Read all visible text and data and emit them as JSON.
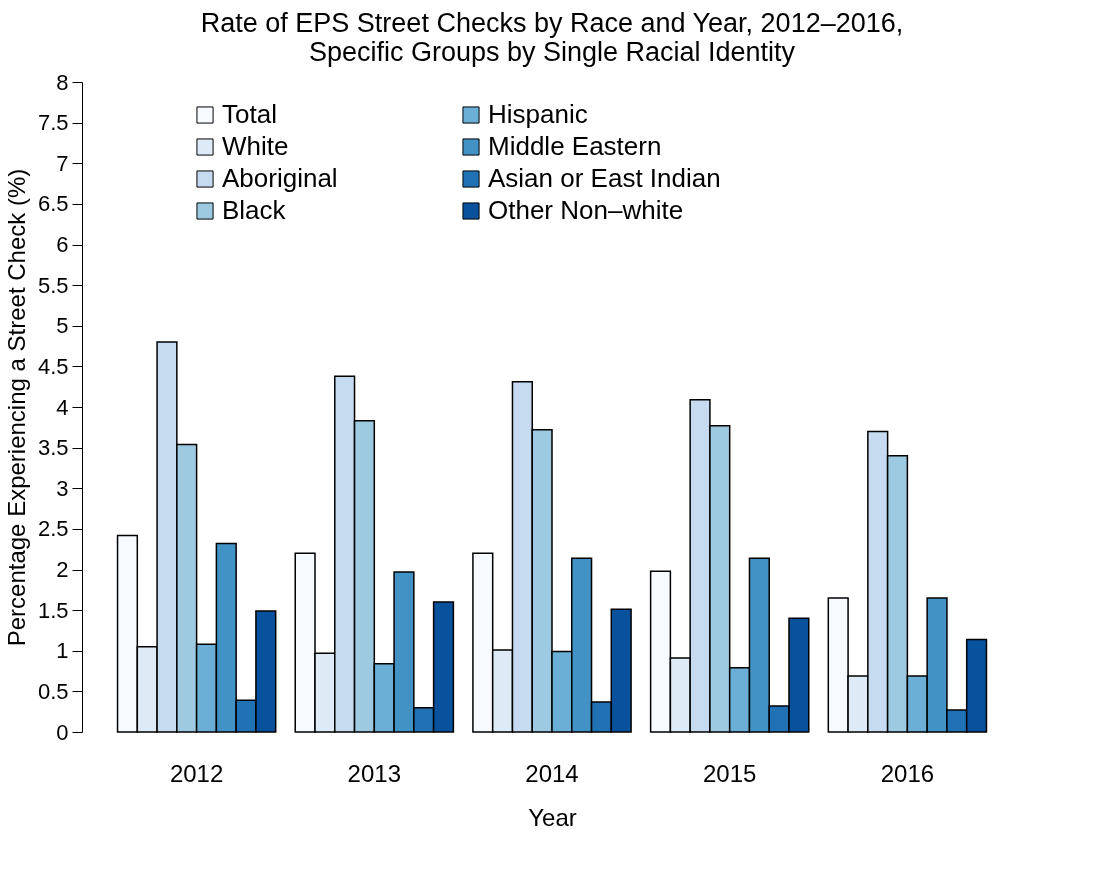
{
  "chart_data": {
    "type": "bar",
    "title": [
      "Rate of EPS Street Checks by Race and Year, 2012–2016,",
      "Specific Groups by Single Racial Identity"
    ],
    "xlabel": "Year",
    "ylabel": "Percentage Experiencing a Street Check (%)",
    "categories": [
      "2012",
      "2013",
      "2014",
      "2015",
      "2016"
    ],
    "series": [
      {
        "name": "Total",
        "color": "#f7fbff",
        "values": [
          2.42,
          2.2,
          2.2,
          1.98,
          1.65
        ]
      },
      {
        "name": "White",
        "color": "#deebf7",
        "values": [
          1.05,
          0.97,
          1.01,
          0.91,
          0.69
        ]
      },
      {
        "name": "Aboriginal",
        "color": "#c6dbef",
        "values": [
          4.8,
          4.38,
          4.31,
          4.09,
          3.7
        ]
      },
      {
        "name": "Black",
        "color": "#9ecae1",
        "values": [
          3.54,
          3.83,
          3.72,
          3.77,
          3.4
        ]
      },
      {
        "name": "Hispanic",
        "color": "#6baed6",
        "values": [
          1.08,
          0.84,
          0.99,
          0.79,
          0.69
        ]
      },
      {
        "name": "Middle Eastern",
        "color": "#4292c6",
        "values": [
          2.32,
          1.97,
          2.14,
          2.14,
          1.65
        ]
      },
      {
        "name": "Asian or East Indian",
        "color": "#2171b5",
        "values": [
          0.39,
          0.3,
          0.37,
          0.32,
          0.27
        ]
      },
      {
        "name": "Other Non–white",
        "color": "#08519c",
        "values": [
          1.49,
          1.6,
          1.51,
          1.4,
          1.14
        ]
      }
    ],
    "ylim": [
      0,
      8
    ],
    "yticks": [
      0,
      0.5,
      1,
      1.5,
      2,
      2.5,
      3,
      3.5,
      4,
      4.5,
      5,
      5.5,
      6,
      6.5,
      7,
      7.5,
      8
    ],
    "grid": false,
    "legend": "top"
  }
}
